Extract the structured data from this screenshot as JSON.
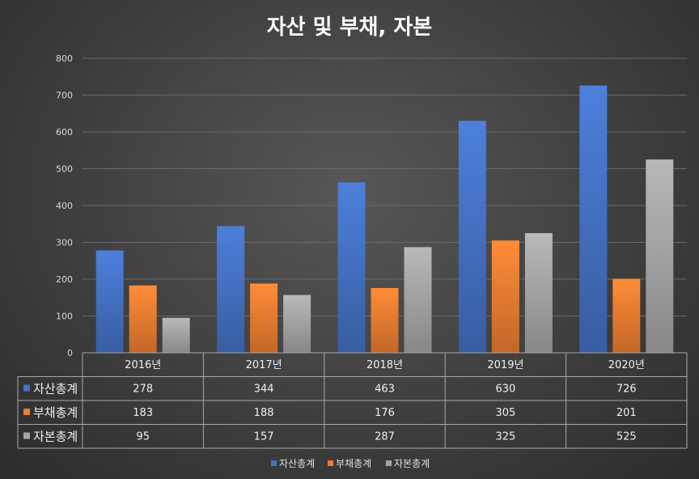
{
  "chart_data": {
    "type": "bar",
    "title": "자산 및 부채, 자본",
    "categories": [
      "2016년",
      "2017년",
      "2018년",
      "2019년",
      "2020년"
    ],
    "series": [
      {
        "name": "자산총계",
        "values": [
          278,
          344,
          463,
          630,
          726
        ],
        "color": "#4472c4"
      },
      {
        "name": "부채총계",
        "values": [
          183,
          188,
          176,
          305,
          201
        ],
        "color": "#ed7d31"
      },
      {
        "name": "자본총계",
        "values": [
          95,
          157,
          287,
          325,
          525
        ],
        "color": "#a5a5a5"
      }
    ],
    "ylim": [
      0,
      800
    ],
    "yticks": [
      0,
      100,
      200,
      300,
      400,
      500,
      600,
      700,
      800
    ],
    "grid": true,
    "legend_position": "bottom",
    "data_table": true
  }
}
